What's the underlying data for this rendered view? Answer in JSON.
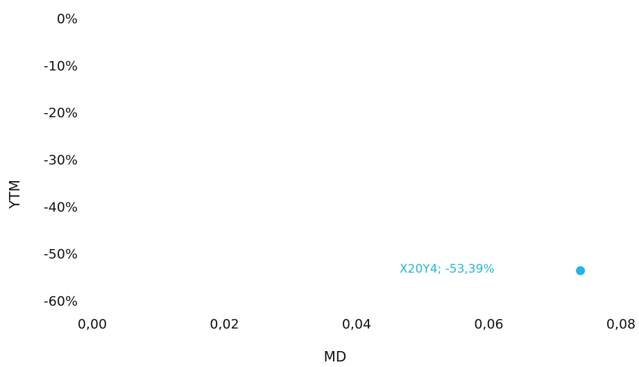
{
  "chart_data": {
    "type": "scatter",
    "title": "",
    "xlabel": "MD",
    "ylabel": "YTM",
    "xlim": [
      0,
      0.08
    ],
    "ylim": [
      -0.6,
      0
    ],
    "x_ticks": [
      0,
      0.02,
      0.04,
      0.06,
      0.08
    ],
    "x_tick_labels": [
      "0,00",
      "0,02",
      "0,04",
      "0,06",
      "0,08"
    ],
    "y_ticks": [
      0,
      -0.1,
      -0.2,
      -0.3,
      -0.4,
      -0.5,
      -0.6
    ],
    "y_tick_labels": [
      "0%",
      "-10%",
      "-20%",
      "-30%",
      "-40%",
      "-50%",
      "-60%"
    ],
    "grid": false,
    "colors": {
      "point": "#1fb5e8",
      "point_label": "#26b6cf"
    },
    "points": [
      {
        "x": 0.0745,
        "y": -0.5339,
        "label": "X20Y4; -53,39%"
      }
    ]
  }
}
